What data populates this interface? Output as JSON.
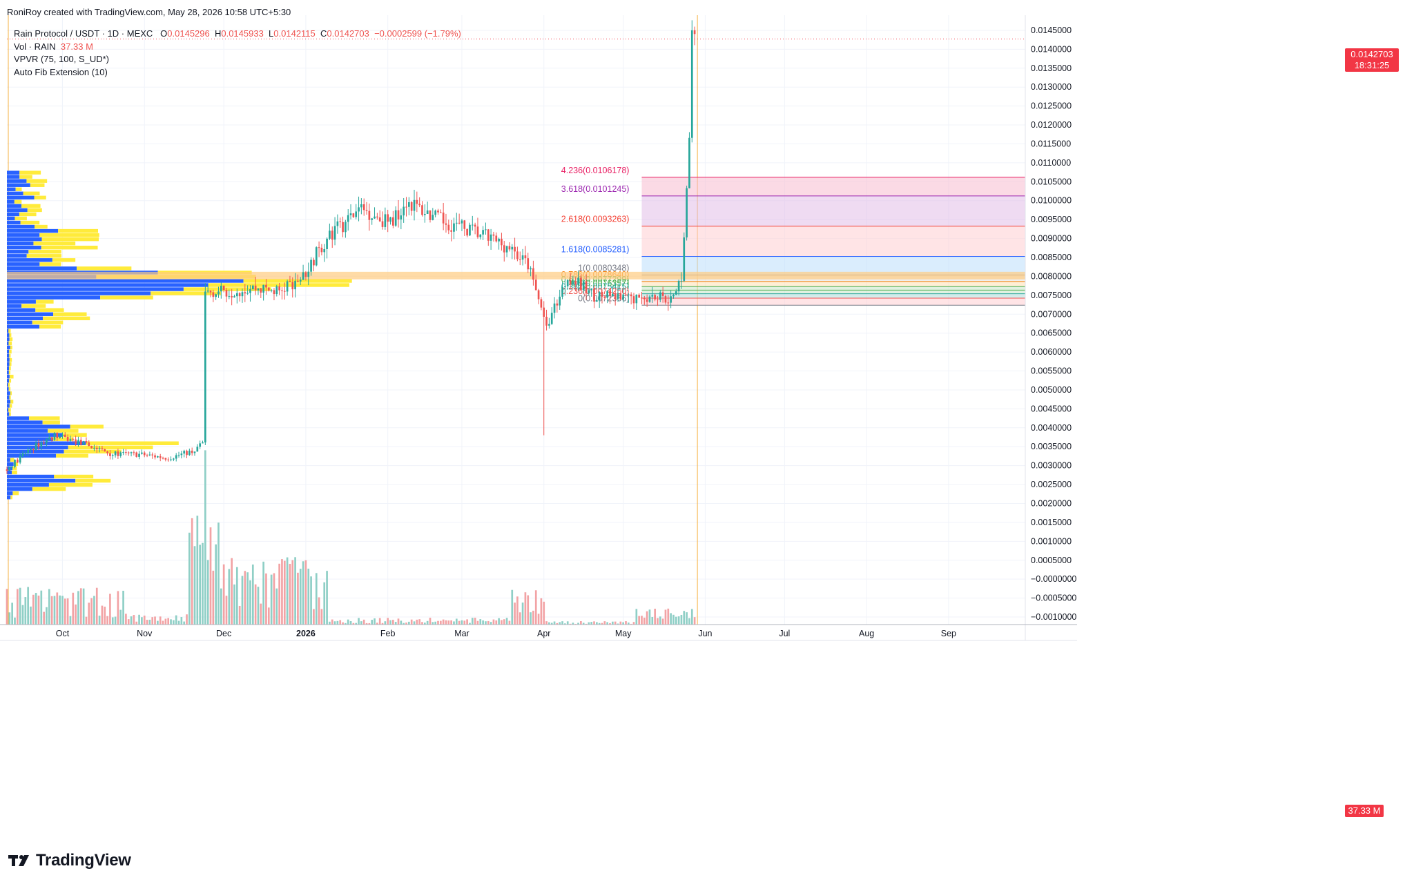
{
  "header": {
    "attribution": "RoniRoy created with TradingView.com, May 28, 2026 10:58 UTC+5:30"
  },
  "legend": {
    "symbol": "Rain Protocol / USDT · 1D · MEXC",
    "open_label": "O",
    "open": "0.0145296",
    "high_label": "H",
    "high": "0.0145933",
    "low_label": "L",
    "low": "0.0142115",
    "close_label": "C",
    "close": "0.0142703",
    "change": "−0.0002599 (−1.79%)",
    "volume_label": "Vol · RAIN",
    "volume": "37.33 M",
    "vpvr": "VPVR (75, 100, S_UD*)",
    "fib": "Auto Fib Extension (10)"
  },
  "price_badge": {
    "price": "0.0142703",
    "countdown": "18:31:25"
  },
  "volume_badge": "37.33 M",
  "branding": {
    "logo_text": "TradingView"
  },
  "colors": {
    "up": "#26a69a",
    "down": "#ef5350",
    "up_volume": "#8fcfc6",
    "down_volume": "#f2a3a5",
    "vpvr_up": "#2962ff",
    "vpvr_down": "#ffeb3b",
    "session_line": "#f5b041"
  },
  "chart_data": {
    "type": "candlestick",
    "title": "Rain Protocol / USDT · 1D · MEXC",
    "x_ticks": [
      "Oct",
      "Nov",
      "Dec",
      "2026",
      "Feb",
      "Mar",
      "Apr",
      "May",
      "Jun",
      "Jul",
      "Aug",
      "Sep"
    ],
    "y_ticks": [
      "0.0145000",
      "0.0140000",
      "0.0135000",
      "0.0130000",
      "0.0125000",
      "0.0120000",
      "0.0115000",
      "0.0110000",
      "0.0105000",
      "0.0100000",
      "0.0095000",
      "0.0090000",
      "0.0085000",
      "0.0080000",
      "0.0075000",
      "0.0070000",
      "0.0065000",
      "0.0060000",
      "0.0055000",
      "0.0050000",
      "0.0045000",
      "0.0040000",
      "0.0035000",
      "0.0030000",
      "0.0025000",
      "0.0020000",
      "0.0015000",
      "0.0010000",
      "0.0005000",
      "−0.0000000",
      "−0.0005000",
      "−0.0010000"
    ],
    "ylim": [
      -0.0012,
      0.0149
    ],
    "date_range": [
      "2025-09-10",
      "2026-09-30"
    ],
    "last_candle_date": "2026-05-28",
    "fib_levels": [
      {
        "label": "4.236(0.0106178)",
        "value": 0.0106178,
        "color": "#e91e63",
        "fill": "#f8bbd0"
      },
      {
        "label": "3.618(0.0101245)",
        "value": 0.0101245,
        "color": "#9c27b0",
        "fill": "#e1bee7"
      },
      {
        "label": "2.618(0.0093263)",
        "value": 0.0093263,
        "color": "#f44336",
        "fill": "#ffcdd2"
      },
      {
        "label": "1.618(0.0085281)",
        "value": 0.0085281,
        "color": "#2962ff",
        "fill": "#bbdefb"
      },
      {
        "label": "1(0.0080348)",
        "value": 0.0080348,
        "color": "#787b86",
        "fill": "#e0e0e0"
      },
      {
        "label": "0.786(0.0078640)",
        "value": 0.007864,
        "color": "#f57c00",
        "fill": "#ffe0b2"
      },
      {
        "label": "0.618(0.0077299)",
        "value": 0.0077299,
        "color": "#4caf50",
        "fill": "#c8e6c9"
      },
      {
        "label": "0.5(0.0076357)",
        "value": 0.0076357,
        "color": "#4caf50",
        "fill": "#c8e6c9"
      },
      {
        "label": "0.382(0.0075415)",
        "value": 0.0075415,
        "color": "#26a69a",
        "fill": "#b2dfdb"
      },
      {
        "label": "0.236(0.0074250)",
        "value": 0.007425,
        "color": "#ef5350",
        "fill": "#ffcdd2"
      },
      {
        "label": "0(0.0072366)",
        "value": 0.0072366,
        "color": "#787b86",
        "fill": "#ffcdd2"
      }
    ],
    "fib_range": [
      "2026-05-08",
      "2026-09-30"
    ],
    "anchors": [
      {
        "d": "2025-09-10",
        "p": 0.0029
      },
      {
        "d": "2025-09-18",
        "p": 0.0034
      },
      {
        "d": "2025-09-28",
        "p": 0.0038
      },
      {
        "d": "2025-10-08",
        "p": 0.0036
      },
      {
        "d": "2025-10-20",
        "p": 0.0033
      },
      {
        "d": "2025-10-30",
        "p": 0.0033
      },
      {
        "d": "2025-11-10",
        "p": 0.0032
      },
      {
        "d": "2025-11-20",
        "p": 0.0034
      },
      {
        "d": "2025-11-23",
        "p": 0.0036
      },
      {
        "d": "2025-11-24",
        "p": 0.0076
      },
      {
        "d": "2025-12-03",
        "p": 0.0076
      },
      {
        "d": "2025-12-12",
        "p": 0.0077
      },
      {
        "d": "2025-12-22",
        "p": 0.0076
      },
      {
        "d": "2025-12-31",
        "p": 0.008
      },
      {
        "d": "2026-01-05",
        "p": 0.0086
      },
      {
        "d": "2026-01-12",
        "p": 0.0092
      },
      {
        "d": "2026-01-22",
        "p": 0.0098
      },
      {
        "d": "2026-02-02",
        "p": 0.0094
      },
      {
        "d": "2026-02-08",
        "p": 0.01
      },
      {
        "d": "2026-02-20",
        "p": 0.0095
      },
      {
        "d": "2026-03-05",
        "p": 0.0092
      },
      {
        "d": "2026-03-18",
        "p": 0.0088
      },
      {
        "d": "2026-03-26",
        "p": 0.0083
      },
      {
        "d": "2026-04-02",
        "p": 0.0067
      },
      {
        "d": "2026-04-10",
        "p": 0.008
      },
      {
        "d": "2026-04-20",
        "p": 0.0075
      },
      {
        "d": "2026-05-01",
        "p": 0.0074
      },
      {
        "d": "2026-05-12",
        "p": 0.0075
      },
      {
        "d": "2026-05-20",
        "p": 0.0074
      },
      {
        "d": "2026-05-23",
        "p": 0.008
      },
      {
        "d": "2026-05-26",
        "p": 0.0115
      },
      {
        "d": "2026-05-27",
        "p": 0.0145
      },
      {
        "d": "2026-05-28",
        "p": 0.0142703
      }
    ],
    "volume_hint": "volume bars in bottom pane; spikes near 2025-11-24 and 2026-01-01",
    "grid": true,
    "legend_position": "top-left"
  }
}
